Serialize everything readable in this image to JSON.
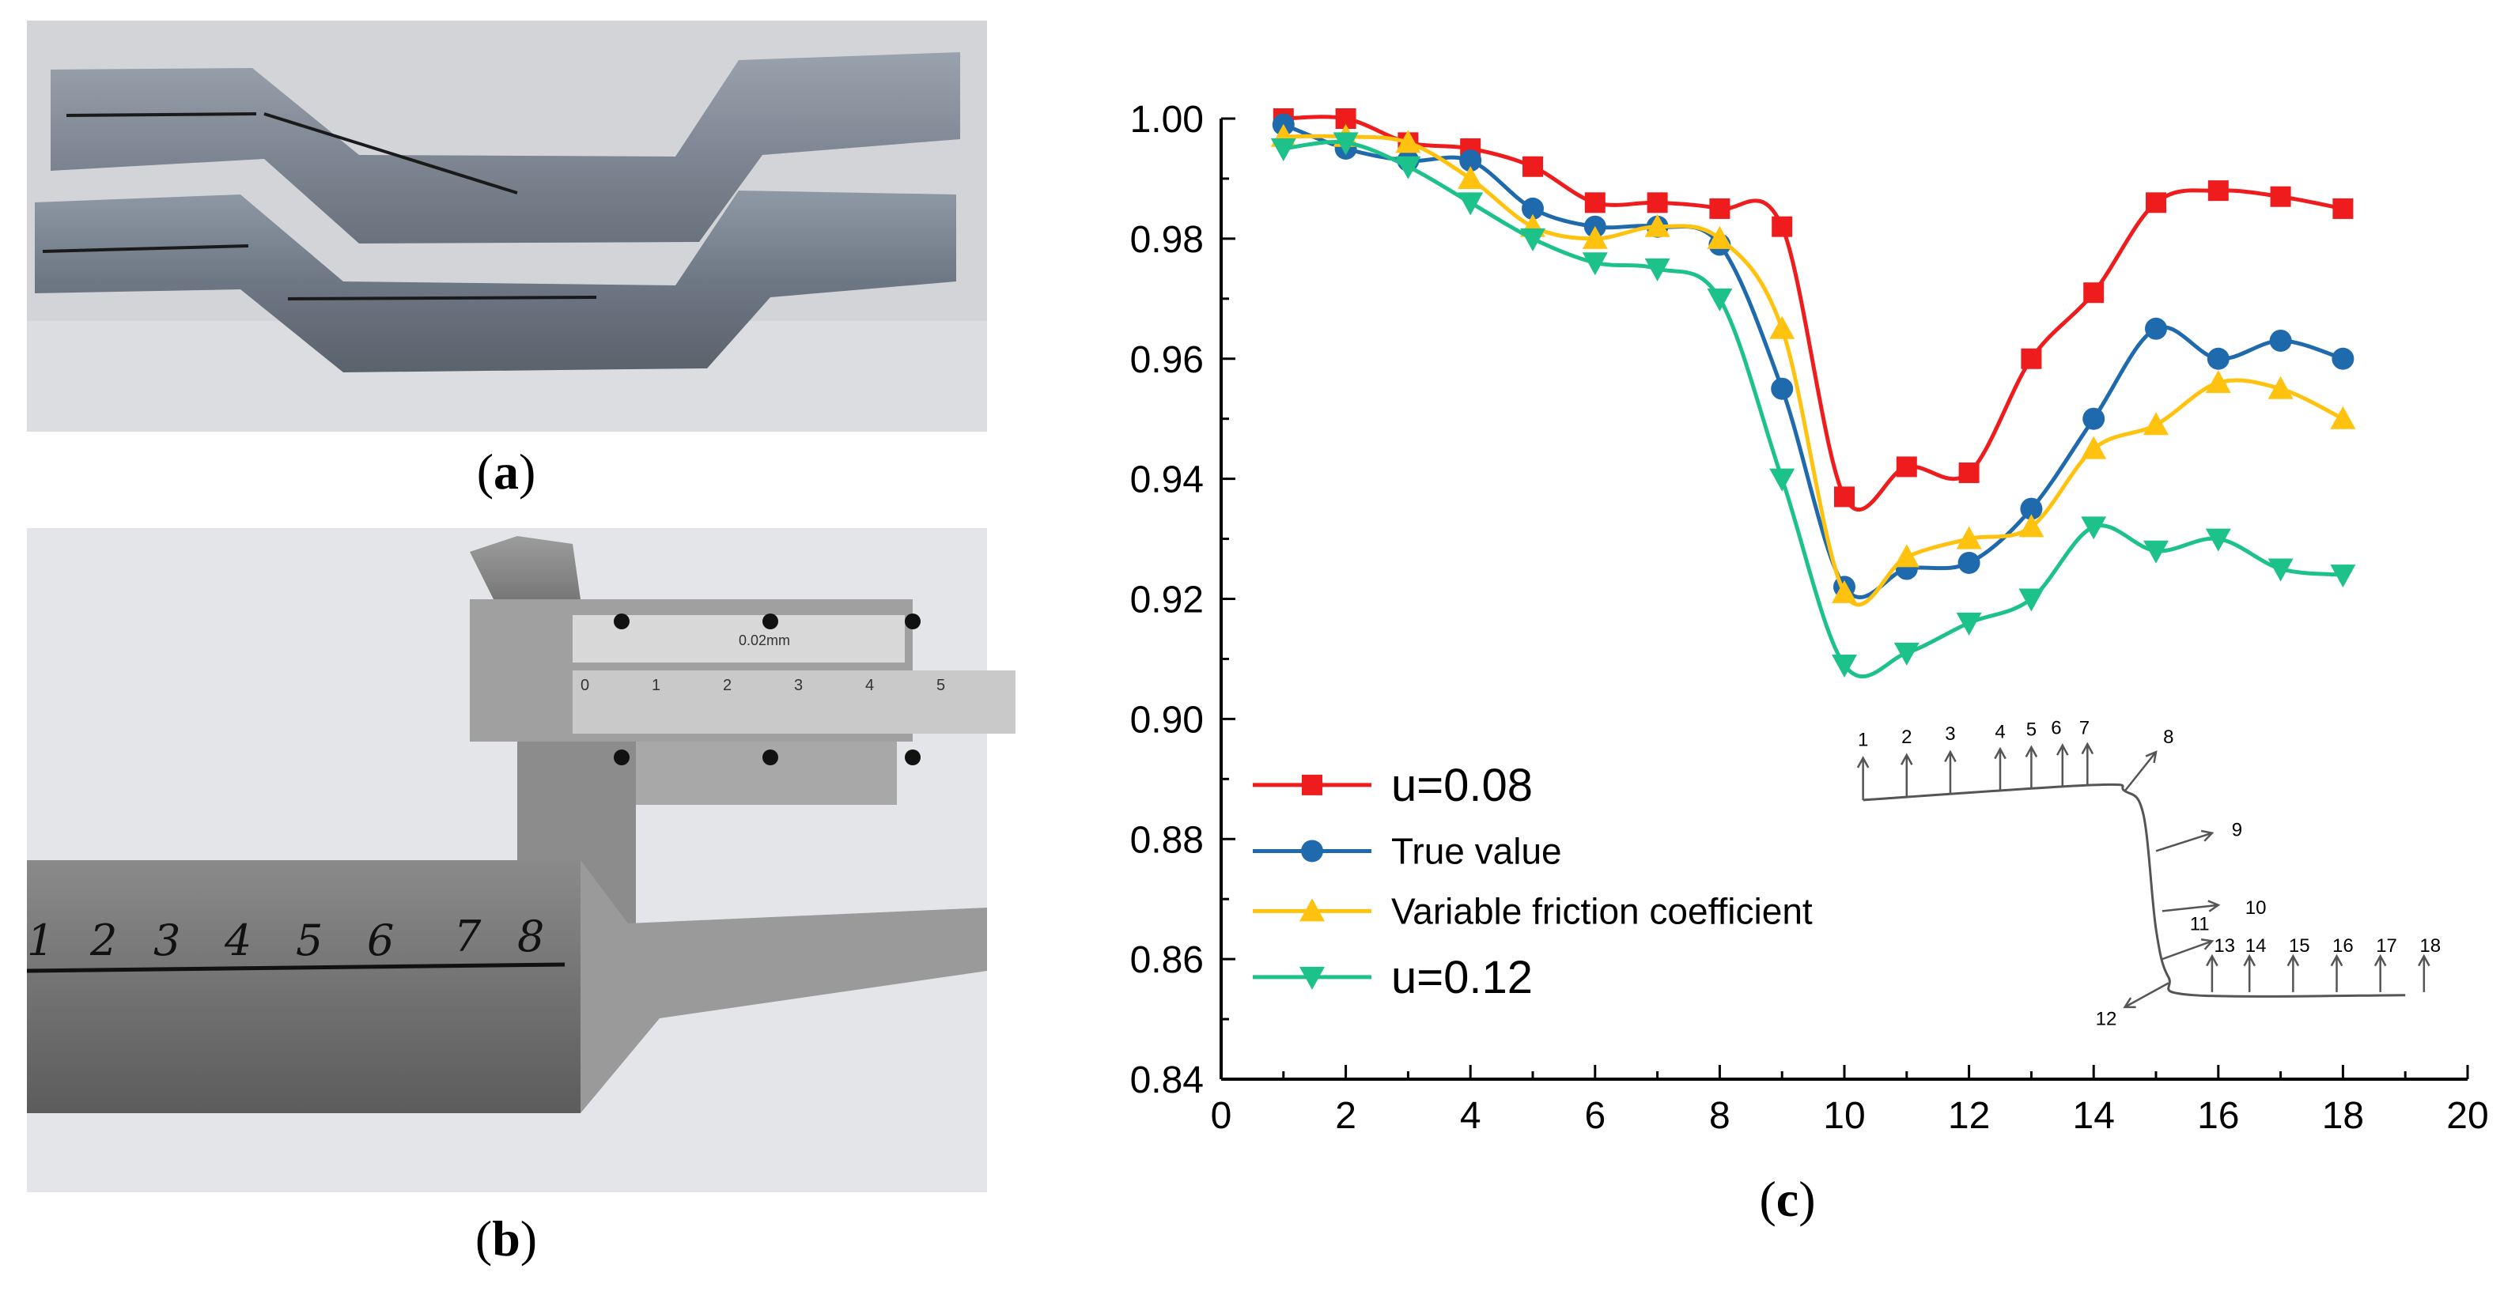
{
  "panels": {
    "a": {
      "letter": "a"
    },
    "b": {
      "letter": "b",
      "ruler_numbers": [
        "1",
        "2",
        "3",
        "4",
        "5",
        "6",
        "7",
        "8"
      ],
      "caliper_label": "0.02mm",
      "scale_numbers": [
        "0",
        "1",
        "2",
        "3",
        "4",
        "5"
      ]
    },
    "c": {
      "letter": "c"
    }
  },
  "colors": {
    "u008": "#ee1c1c",
    "true_value": "#1f6aad",
    "variable": "#ffc20e",
    "u012": "#1dc28a",
    "axis": "#000000",
    "diagram": "#555555"
  },
  "chart_data": {
    "type": "line",
    "xlim": [
      0,
      20
    ],
    "ylim": [
      0.84,
      1.0
    ],
    "xticks": [
      "0",
      "2",
      "4",
      "6",
      "8",
      "10",
      "12",
      "14",
      "16",
      "18",
      "20"
    ],
    "yticks": [
      "0.84",
      "0.86",
      "0.88",
      "0.90",
      "0.92",
      "0.94",
      "0.96",
      "0.98",
      "1.00"
    ],
    "grid": false,
    "legend_position": "bottom-left",
    "x": [
      1,
      2,
      3,
      4,
      5,
      6,
      7,
      8,
      9,
      10,
      11,
      12,
      13,
      14,
      15,
      16,
      17,
      18
    ],
    "series": [
      {
        "name": "u=0.08",
        "marker": "square",
        "color": "#ee1c1c",
        "values": [
          1.0,
          1.0,
          0.996,
          0.995,
          0.992,
          0.986,
          0.986,
          0.985,
          0.982,
          0.937,
          0.942,
          0.941,
          0.96,
          0.971,
          0.986,
          0.988,
          0.987,
          0.985
        ]
      },
      {
        "name": "True value",
        "marker": "circle",
        "color": "#1f6aad",
        "values": [
          0.999,
          0.995,
          0.993,
          0.993,
          0.985,
          0.982,
          0.982,
          0.979,
          0.955,
          0.922,
          0.925,
          0.926,
          0.935,
          0.95,
          0.965,
          0.96,
          0.963,
          0.96
        ]
      },
      {
        "name": " Variable friction coefficient",
        "marker": "triangle-up",
        "color": "#ffc20e",
        "values": [
          0.997,
          0.997,
          0.996,
          0.99,
          0.982,
          0.98,
          0.982,
          0.98,
          0.965,
          0.921,
          0.927,
          0.93,
          0.932,
          0.945,
          0.949,
          0.956,
          0.955,
          0.95
        ]
      },
      {
        "name": "u=0.12",
        "marker": "triangle-down",
        "color": "#1dc28a",
        "values": [
          0.995,
          0.996,
          0.992,
          0.986,
          0.98,
          0.976,
          0.975,
          0.97,
          0.94,
          0.909,
          0.911,
          0.916,
          0.92,
          0.932,
          0.928,
          0.93,
          0.925,
          0.924
        ]
      }
    ],
    "inset_labels": [
      "1",
      "2",
      "3",
      "4",
      "5",
      "6",
      "7",
      "8",
      "9",
      "10",
      "11",
      "12",
      "13",
      "14",
      "15",
      "16",
      "17",
      "18"
    ]
  }
}
